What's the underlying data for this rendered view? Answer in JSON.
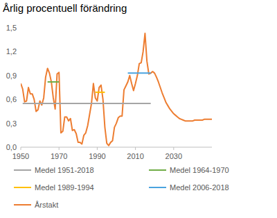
{
  "chart_data": {
    "type": "line",
    "title": "Årlig procentuell förändring",
    "xlim": [
      1950,
      2050
    ],
    "xticks": [
      1950,
      1970,
      1990,
      2010,
      2030
    ],
    "ylim": [
      0,
      1.5
    ],
    "yticks": [
      {
        "value": 0,
        "label": "0,0"
      },
      {
        "value": 0.3,
        "label": "0,3"
      },
      {
        "value": 0.6,
        "label": "0,6"
      },
      {
        "value": 0.9,
        "label": "0,9"
      },
      {
        "value": 1.2,
        "label": "1,2"
      },
      {
        "value": 1.5,
        "label": "1,5"
      }
    ],
    "grid": false,
    "legend": "bottom",
    "series": [
      {
        "name": "Medel 1951-2018",
        "color": "#a5a5a5",
        "x": [
          1951,
          2018
        ],
        "values": [
          0.55,
          0.55
        ]
      },
      {
        "name": "Medel 1964-1970",
        "color": "#70ad47",
        "x": [
          1964,
          1970
        ],
        "values": [
          0.82,
          0.82
        ]
      },
      {
        "name": "Medel 1989-1994",
        "color": "#ffc000",
        "x": [
          1989,
          1994
        ],
        "values": [
          0.69,
          0.69
        ]
      },
      {
        "name": "Medel 2006-2018",
        "color": "#4aa3df",
        "x": [
          2006,
          2018
        ],
        "values": [
          0.93,
          0.93
        ]
      },
      {
        "name": "Årstakt",
        "color": "#ed7d31",
        "x": [
          1950,
          1951,
          1952,
          1953,
          1954,
          1955,
          1956,
          1957,
          1958,
          1959,
          1960,
          1961,
          1962,
          1963,
          1964,
          1965,
          1966,
          1967,
          1968,
          1969,
          1970,
          1971,
          1972,
          1973,
          1974,
          1975,
          1976,
          1977,
          1978,
          1979,
          1980,
          1981,
          1982,
          1983,
          1984,
          1985,
          1986,
          1987,
          1988,
          1989,
          1990,
          1991,
          1992,
          1993,
          1994,
          1995,
          1996,
          1997,
          1998,
          1999,
          2000,
          2001,
          2002,
          2003,
          2004,
          2005,
          2006,
          2007,
          2008,
          2009,
          2010,
          2011,
          2012,
          2013,
          2014,
          2015,
          2016,
          2017,
          2018,
          2019,
          2020,
          2021,
          2022,
          2023,
          2024,
          2025,
          2026,
          2027,
          2028,
          2029,
          2030,
          2031,
          2032,
          2033,
          2034,
          2035,
          2036,
          2037,
          2038,
          2039,
          2040,
          2041,
          2042,
          2043,
          2044,
          2045,
          2046,
          2047,
          2048,
          2049,
          2050
        ],
        "values": [
          0.8,
          0.73,
          0.57,
          0.58,
          0.75,
          0.67,
          0.67,
          0.6,
          0.45,
          0.47,
          0.58,
          0.53,
          0.62,
          0.88,
          0.99,
          0.93,
          0.82,
          0.62,
          0.48,
          0.92,
          0.94,
          0.18,
          0.2,
          0.38,
          0.38,
          0.33,
          0.36,
          0.21,
          0.22,
          0.17,
          0.06,
          0.06,
          0.04,
          0.15,
          0.18,
          0.27,
          0.41,
          0.55,
          0.8,
          0.62,
          0.58,
          0.75,
          0.78,
          0.6,
          0.25,
          0.05,
          0.02,
          0.06,
          0.08,
          0.25,
          0.3,
          0.37,
          0.39,
          0.39,
          0.72,
          0.77,
          0.82,
          0.9,
          0.8,
          0.71,
          0.8,
          0.9,
          1.05,
          1.06,
          1.2,
          1.43,
          1.08,
          0.92,
          0.93,
          0.95,
          0.93,
          0.88,
          0.82,
          0.75,
          0.68,
          0.62,
          0.56,
          0.52,
          0.48,
          0.45,
          0.42,
          0.4,
          0.38,
          0.36,
          0.35,
          0.34,
          0.33,
          0.33,
          0.33,
          0.33,
          0.33,
          0.34,
          0.34,
          0.34,
          0.34,
          0.34,
          0.35,
          0.35,
          0.35,
          0.35,
          0.35
        ]
      }
    ]
  }
}
